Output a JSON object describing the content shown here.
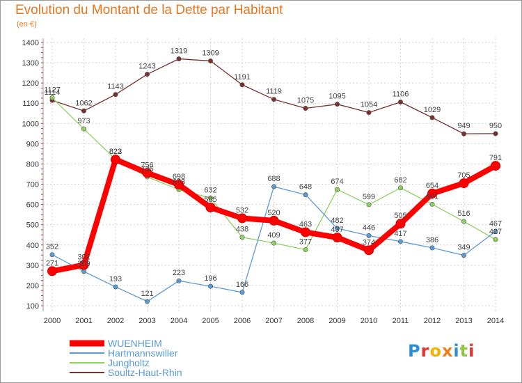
{
  "header": {
    "title": "Evolution du Montant de la Dette par Habitant",
    "unit": "(en €)"
  },
  "logo": {
    "text": "Proxiti",
    "colors": [
      "#2b8fd6",
      "#e5312a",
      "#f0b400",
      "#f07f1a",
      "#2b8fd6",
      "#8fc641",
      "#e5312a"
    ]
  },
  "chart_data": {
    "type": "line",
    "title": "Evolution du Montant de la Dette par Habitant",
    "subtitle": "(en €)",
    "x": [
      "2000",
      "2001",
      "2002",
      "2003",
      "2004",
      "2005",
      "2006",
      "2007",
      "2008",
      "2009",
      "2010",
      "2011",
      "2012",
      "2013",
      "2014"
    ],
    "ylim": [
      100,
      1400
    ],
    "yticks": [
      100,
      200,
      300,
      400,
      500,
      600,
      700,
      800,
      900,
      1000,
      1100,
      1200,
      1300,
      1400
    ],
    "grid": "y-dashed",
    "legend_position": "bottom-left",
    "series": [
      {
        "name": "WUENHEIM",
        "color": "#ff0000",
        "values": [
          271,
          301,
          822,
          756,
          698,
          585,
          532,
          520,
          463,
          437,
          374,
          505,
          654,
          705,
          791
        ],
        "labels": [
          "271",
          "301",
          "822",
          "756",
          "698",
          "585",
          "532",
          "520",
          "463",
          "437",
          "374",
          "505",
          "654",
          "705",
          "791"
        ]
      },
      {
        "name": "Hartmannswiller",
        "color": "#5b9bd5",
        "values": [
          352,
          269,
          193,
          121,
          223,
          196,
          166,
          688,
          648,
          482,
          446,
          417,
          386,
          349,
          467
        ],
        "labels": [
          "352",
          "269",
          "193",
          "121",
          "223",
          "196",
          "166",
          "688",
          "648",
          "482",
          "446",
          "417",
          "386",
          "349",
          "467"
        ]
      },
      {
        "name": "Jungholtz",
        "color": "#8dd35f",
        "values": [
          1127,
          973,
          823,
          736,
          673,
          632,
          438,
          409,
          377,
          674,
          599,
          682,
          601,
          516,
          427
        ],
        "labels": [
          "1127",
          "973",
          "823",
          "736",
          "673",
          "632",
          "438",
          "409",
          "377",
          "674",
          "599",
          "682",
          "601",
          "516",
          "427"
        ]
      },
      {
        "name": "Soultz-Haut-Rhin",
        "color": "#7a2e2e",
        "values": [
          1114,
          1062,
          1143,
          1243,
          1319,
          1309,
          1191,
          1119,
          1075,
          1095,
          1054,
          1106,
          1029,
          949,
          950
        ],
        "labels": [
          "1114",
          "1062",
          "1143",
          "1243",
          "1319",
          "1309",
          "1191",
          "1119",
          "1075",
          "1095",
          "1054",
          "1106",
          "1029",
          "949",
          "950"
        ]
      }
    ]
  }
}
